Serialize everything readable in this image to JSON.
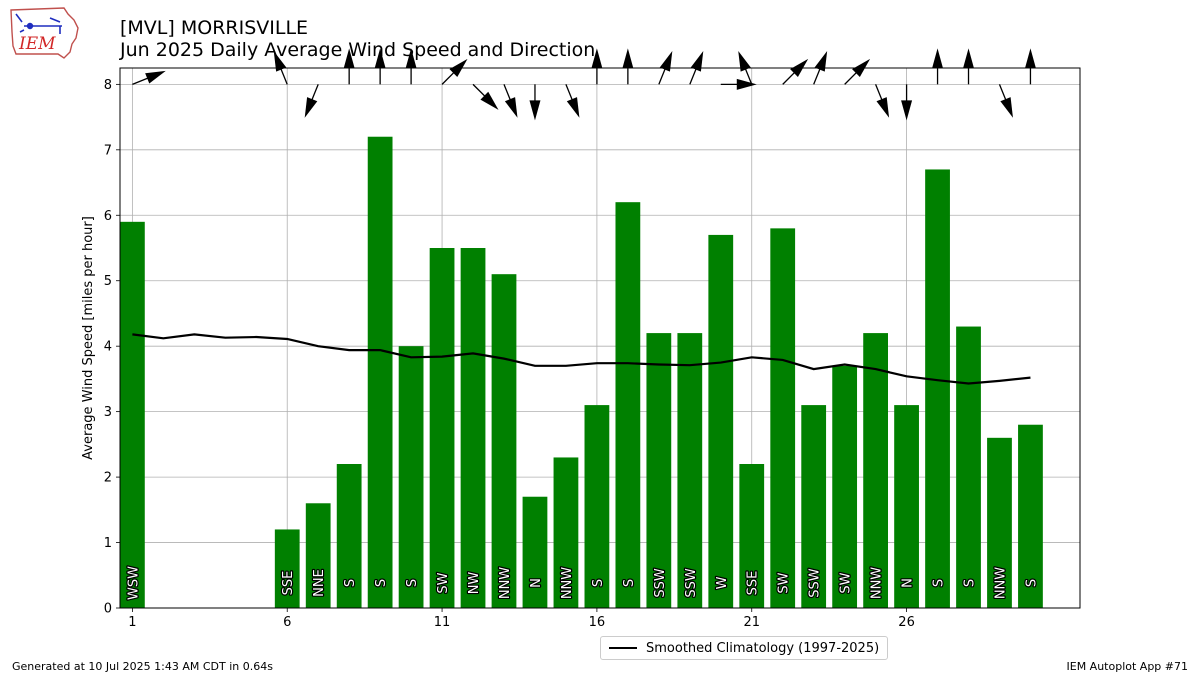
{
  "header": {
    "logo_text": "IEM",
    "title_line1": "[MVL] MORRISVILLE",
    "title_line2": "Jun 2025 Daily Average Wind Speed and Direction"
  },
  "legend": {
    "climatology_label": "Smoothed Climatology (1997-2025)"
  },
  "footer": {
    "generated": "Generated at 10 Jul 2025 1:43 AM CDT in 0.64s",
    "app": "IEM Autoplot App #71"
  },
  "colors": {
    "bar": "#008000",
    "climatology": "#000000",
    "grid": "#b0b0b0",
    "arrow": "#000000"
  },
  "chart_data": {
    "type": "bar",
    "ylabel": "Average Wind Speed [miles per hour]",
    "xlabel": "",
    "ylim": [
      0,
      8.25
    ],
    "xlim": [
      0.6,
      31.6
    ],
    "grid": true,
    "legend_position": "bottom",
    "x_ticks": [
      1,
      6,
      11,
      16,
      21,
      26
    ],
    "y_ticks": [
      0,
      1,
      2,
      3,
      4,
      5,
      6,
      7,
      8
    ],
    "series": [
      {
        "name": "Average Wind Speed",
        "days": [
          1,
          6,
          7,
          8,
          9,
          10,
          11,
          12,
          13,
          14,
          15,
          16,
          17,
          18,
          19,
          20,
          21,
          22,
          23,
          24,
          25,
          26,
          27,
          28,
          29,
          30
        ],
        "values": [
          5.9,
          1.2,
          1.6,
          2.2,
          7.2,
          4.0,
          5.5,
          5.5,
          5.1,
          1.7,
          2.3,
          3.1,
          6.2,
          4.2,
          4.2,
          5.7,
          2.2,
          5.8,
          3.1,
          3.7,
          4.2,
          3.1,
          6.7,
          4.3,
          2.6,
          2.8
        ],
        "directions": [
          "WSW",
          "SSE",
          "NNE",
          "S",
          "S",
          "S",
          "SW",
          "NW",
          "NNW",
          "N",
          "NNW",
          "S",
          "S",
          "SSW",
          "SSW",
          "W",
          "SSE",
          "SW",
          "SSW",
          "SW",
          "NNW",
          "N",
          "S",
          "S",
          "NNW",
          "S"
        ]
      }
    ],
    "climatology": {
      "name": "Smoothed Climatology (1997-2025)",
      "days": [
        1,
        2,
        3,
        4,
        5,
        6,
        7,
        8,
        9,
        10,
        11,
        12,
        13,
        14,
        15,
        16,
        17,
        18,
        19,
        20,
        21,
        22,
        23,
        24,
        25,
        26,
        27,
        28,
        29,
        30
      ],
      "values": [
        4.18,
        4.12,
        4.18,
        4.13,
        4.14,
        4.11,
        4.0,
        3.94,
        3.94,
        3.83,
        3.84,
        3.89,
        3.81,
        3.7,
        3.7,
        3.74,
        3.74,
        3.72,
        3.71,
        3.75,
        3.83,
        3.79,
        3.65,
        3.72,
        3.65,
        3.54,
        3.48,
        3.43,
        3.47,
        3.52
      ]
    },
    "wind_arrows": {
      "days": [
        1,
        6,
        7,
        8,
        9,
        10,
        11,
        12,
        13,
        14,
        15,
        16,
        17,
        18,
        19,
        20,
        21,
        22,
        23,
        24,
        25,
        26,
        27,
        28,
        29,
        30
      ],
      "direction_deg": [
        248,
        158,
        22,
        180,
        180,
        180,
        225,
        315,
        338,
        0,
        338,
        180,
        180,
        202,
        202,
        270,
        158,
        225,
        202,
        225,
        338,
        0,
        180,
        180,
        338,
        180
      ]
    }
  }
}
